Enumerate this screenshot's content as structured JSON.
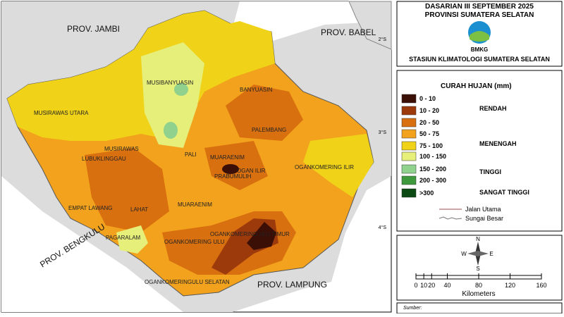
{
  "header": {
    "title_line1": "DASARIAN III SEPTEMBER 2025",
    "title_line2": "PROVINSI SUMATERA SELATAN",
    "logo_text": "BMKG",
    "station": "STASIUN KLIMATOLOGI SUMATERA SELATAN"
  },
  "legend": {
    "title": "CURAH HUJAN (mm)",
    "items": [
      {
        "label": "0 - 10",
        "color": "#3b0f05"
      },
      {
        "label": "10 - 20",
        "color": "#9c3a0c"
      },
      {
        "label": "20 - 50",
        "color": "#d9700f"
      },
      {
        "label": "50 - 75",
        "color": "#f2a21c"
      },
      {
        "label": "75 - 100",
        "color": "#f0d319"
      },
      {
        "label": "100 - 150",
        "color": "#e6ef7a"
      },
      {
        "label": "150 - 200",
        "color": "#8fd18d"
      },
      {
        "label": "200 - 300",
        "color": "#3e9a3c"
      },
      {
        "label": ">300",
        "color": "#0b4a12"
      }
    ],
    "categories": [
      "RENDAH",
      "MENENGAH",
      "TINGGI",
      "SANGAT TINGGI"
    ],
    "lines": [
      "Jalan Utama",
      "Sungai Besar"
    ]
  },
  "compass": {
    "n": "N",
    "s": "S",
    "w": "W",
    "e": "E"
  },
  "scale": {
    "ticks": [
      0,
      10,
      20,
      40,
      80,
      120,
      160
    ],
    "unit": "Kilometers"
  },
  "source": {
    "label": "Sumber:"
  },
  "map": {
    "provinces": [
      "PROV. JAMBI",
      "PROV. BABEL",
      "PROV. BENGKULU",
      "PROV. LAMPUNG"
    ],
    "lat_ticks": [
      "2°S",
      "3°S",
      "4°S"
    ],
    "regions": [
      "MUSIBANYUASIN",
      "BANYUASIN",
      "MUSIRAWAS UTARA",
      "PALEMBANG",
      "MUSIRAWAS",
      "LUBUKLINGGAU",
      "PALI",
      "MUARAENIM",
      "PRABUMULIH",
      "OGAN ILIR",
      "OGANKOMERING ILIR",
      "EMPAT LAWANG",
      "LAHAT",
      "MUARAENIM",
      "PAGARALAM",
      "OGANKOMERING ULU TIMUR",
      "OGANKOMERING ULU",
      "OGANKOMERINGULU SELATAN"
    ]
  }
}
